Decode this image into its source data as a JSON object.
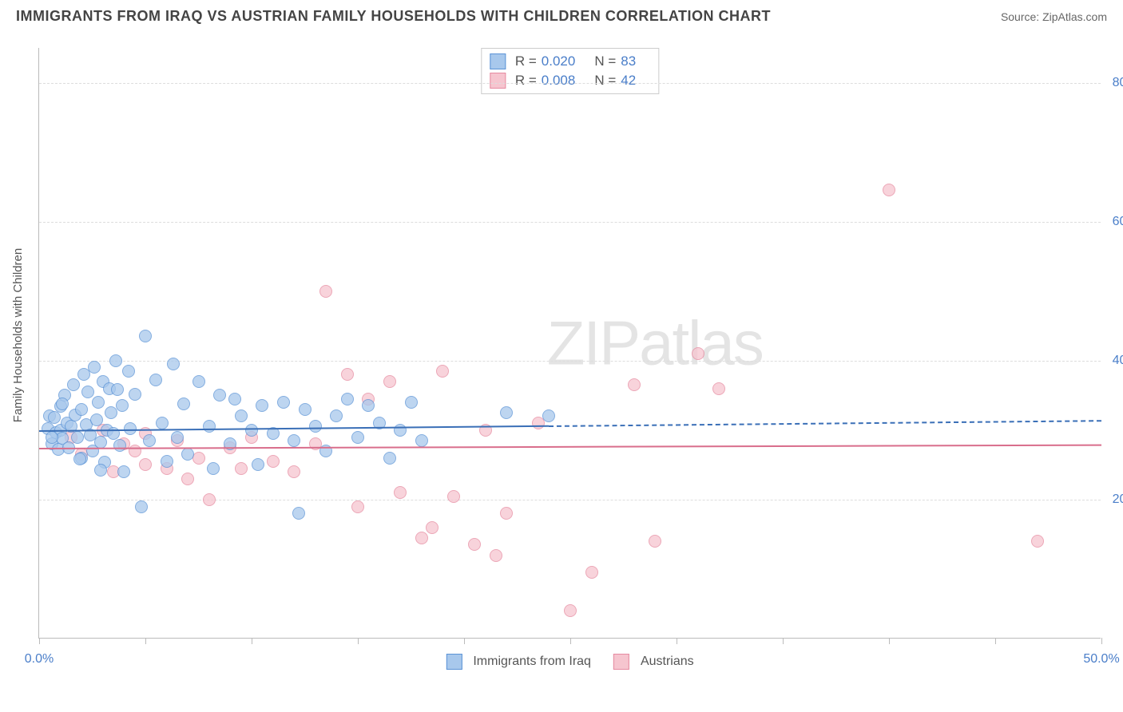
{
  "header": {
    "title": "IMMIGRANTS FROM IRAQ VS AUSTRIAN FAMILY HOUSEHOLDS WITH CHILDREN CORRELATION CHART",
    "source_label": "Source:",
    "source_name": "ZipAtlas.com"
  },
  "chart": {
    "type": "scatter",
    "y_axis_title": "Family Households with Children",
    "background_color": "#ffffff",
    "grid_color": "#dddddd",
    "axis_color": "#bbbbbb",
    "tick_label_color": "#4a7ec9",
    "xlim": [
      0,
      50
    ],
    "ylim": [
      0,
      85
    ],
    "x_ticks": [
      0,
      5,
      10,
      15,
      20,
      25,
      30,
      35,
      40,
      45,
      50
    ],
    "x_tick_labels": {
      "0": "0.0%",
      "50": "50.0%"
    },
    "y_gridlines": [
      20,
      40,
      60,
      80
    ],
    "y_tick_labels": {
      "20": "20.0%",
      "40": "40.0%",
      "60": "60.0%",
      "80": "80.0%"
    },
    "watermark": "ZIPatlas",
    "point_radius": 8,
    "series": {
      "iraq": {
        "label": "Immigrants from Iraq",
        "fill_color": "#a8c8ec",
        "stroke_color": "#5b93d6",
        "trend_color": "#3a6fb7",
        "R": "0.020",
        "N": "83",
        "trend_y_start": 30.0,
        "trend_y_end": 31.5,
        "solid_x_end": 24,
        "points": [
          [
            0.4,
            30.2
          ],
          [
            0.5,
            32.0
          ],
          [
            0.6,
            28.0
          ],
          [
            0.7,
            31.8
          ],
          [
            0.8,
            29.6
          ],
          [
            0.9,
            27.2
          ],
          [
            1.0,
            33.4
          ],
          [
            1.0,
            30.0
          ],
          [
            1.1,
            28.8
          ],
          [
            1.2,
            35.0
          ],
          [
            1.3,
            31.0
          ],
          [
            1.4,
            27.5
          ],
          [
            1.5,
            30.5
          ],
          [
            1.6,
            36.5
          ],
          [
            1.7,
            32.2
          ],
          [
            1.8,
            29.0
          ],
          [
            2.0,
            33.0
          ],
          [
            2.0,
            26.0
          ],
          [
            2.1,
            38.0
          ],
          [
            2.2,
            30.8
          ],
          [
            2.3,
            35.5
          ],
          [
            2.4,
            29.3
          ],
          [
            2.5,
            27.0
          ],
          [
            2.6,
            39.0
          ],
          [
            2.7,
            31.5
          ],
          [
            2.8,
            34.0
          ],
          [
            2.9,
            28.2
          ],
          [
            3.0,
            37.0
          ],
          [
            3.1,
            25.4
          ],
          [
            3.2,
            30.0
          ],
          [
            3.3,
            36.0
          ],
          [
            3.4,
            32.5
          ],
          [
            3.5,
            29.5
          ],
          [
            3.6,
            40.0
          ],
          [
            3.8,
            27.8
          ],
          [
            3.9,
            33.5
          ],
          [
            4.0,
            24.0
          ],
          [
            4.2,
            38.5
          ],
          [
            4.3,
            30.2
          ],
          [
            4.5,
            35.2
          ],
          [
            4.8,
            19.0
          ],
          [
            5.0,
            43.5
          ],
          [
            5.2,
            28.5
          ],
          [
            5.5,
            37.2
          ],
          [
            5.8,
            31.0
          ],
          [
            6.0,
            25.5
          ],
          [
            6.3,
            39.5
          ],
          [
            6.5,
            29.0
          ],
          [
            6.8,
            33.8
          ],
          [
            7.0,
            26.5
          ],
          [
            7.5,
            37.0
          ],
          [
            8.0,
            30.5
          ],
          [
            8.2,
            24.5
          ],
          [
            8.5,
            35.0
          ],
          [
            9.0,
            28.0
          ],
          [
            9.2,
            34.5
          ],
          [
            9.5,
            32.0
          ],
          [
            10.0,
            30.0
          ],
          [
            10.3,
            25.0
          ],
          [
            10.5,
            33.5
          ],
          [
            11.0,
            29.5
          ],
          [
            11.5,
            34.0
          ],
          [
            12.0,
            28.5
          ],
          [
            12.2,
            18.0
          ],
          [
            12.5,
            33.0
          ],
          [
            13.0,
            30.5
          ],
          [
            13.5,
            27.0
          ],
          [
            14.0,
            32.0
          ],
          [
            14.5,
            34.5
          ],
          [
            15.0,
            29.0
          ],
          [
            15.5,
            33.5
          ],
          [
            16.0,
            31.0
          ],
          [
            16.5,
            26.0
          ],
          [
            17.0,
            30.0
          ],
          [
            17.5,
            34.0
          ],
          [
            18.0,
            28.5
          ],
          [
            22.0,
            32.5
          ],
          [
            24.0,
            32.0
          ],
          [
            2.9,
            24.2
          ],
          [
            3.7,
            35.8
          ],
          [
            1.9,
            25.8
          ],
          [
            1.1,
            33.8
          ],
          [
            0.6,
            29.0
          ]
        ]
      },
      "austrian": {
        "label": "Austrians",
        "fill_color": "#f6c5cf",
        "stroke_color": "#e68aa0",
        "trend_color": "#d96e8c",
        "R": "0.008",
        "N": "42",
        "trend_y_start": 27.5,
        "trend_y_end": 28.0,
        "solid_x_end": 50,
        "points": [
          [
            1.5,
            29.0
          ],
          [
            2.0,
            26.5
          ],
          [
            3.0,
            30.0
          ],
          [
            3.5,
            24.0
          ],
          [
            4.0,
            28.0
          ],
          [
            4.5,
            27.0
          ],
          [
            5.0,
            25.0
          ],
          [
            6.5,
            28.5
          ],
          [
            7.0,
            23.0
          ],
          [
            7.5,
            26.0
          ],
          [
            8.0,
            20.0
          ],
          [
            9.0,
            27.5
          ],
          [
            9.5,
            24.5
          ],
          [
            10.0,
            29.0
          ],
          [
            11.0,
            25.5
          ],
          [
            12.0,
            24.0
          ],
          [
            13.0,
            28.0
          ],
          [
            13.5,
            50.0
          ],
          [
            14.5,
            38.0
          ],
          [
            15.0,
            19.0
          ],
          [
            15.5,
            34.5
          ],
          [
            16.5,
            37.0
          ],
          [
            17.0,
            21.0
          ],
          [
            18.0,
            14.5
          ],
          [
            18.5,
            16.0
          ],
          [
            19.0,
            38.5
          ],
          [
            19.5,
            20.5
          ],
          [
            20.5,
            13.5
          ],
          [
            21.0,
            30.0
          ],
          [
            21.5,
            12.0
          ],
          [
            22.0,
            18.0
          ],
          [
            23.5,
            31.0
          ],
          [
            25.0,
            4.0
          ],
          [
            26.0,
            9.5
          ],
          [
            28.0,
            36.5
          ],
          [
            29.0,
            14.0
          ],
          [
            31.0,
            41.0
          ],
          [
            32.0,
            36.0
          ],
          [
            40.0,
            64.5
          ],
          [
            47.0,
            14.0
          ],
          [
            5.0,
            29.5
          ],
          [
            6.0,
            24.5
          ]
        ]
      }
    }
  },
  "legend": {
    "r_label": "R =",
    "n_label": "N ="
  }
}
